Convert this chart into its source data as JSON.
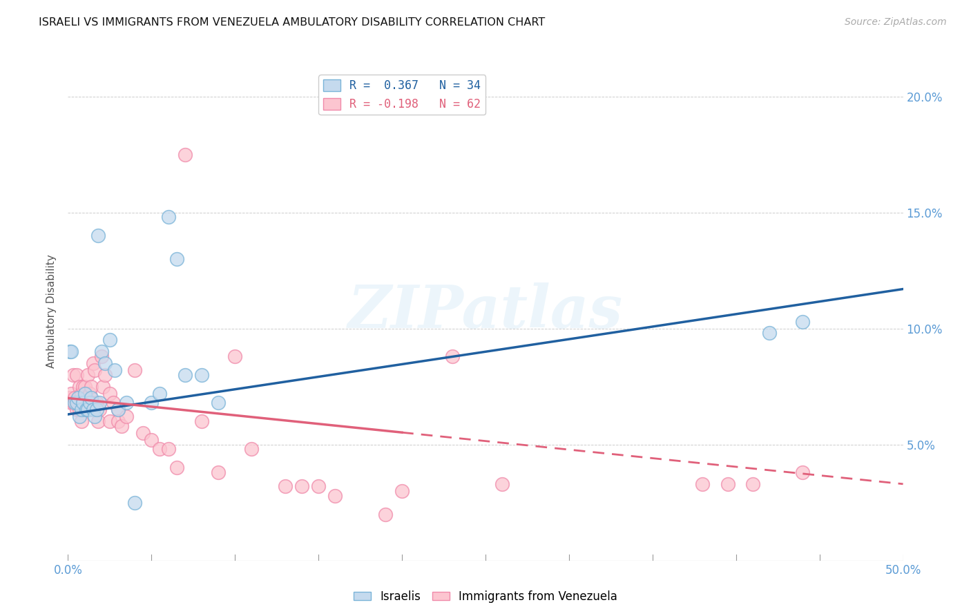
{
  "title": "ISRAELI VS IMMIGRANTS FROM VENEZUELA AMBULATORY DISABILITY CORRELATION CHART",
  "source": "Source: ZipAtlas.com",
  "ylabel": "Ambulatory Disability",
  "xlim": [
    0.0,
    0.5
  ],
  "ylim": [
    0.0,
    0.215
  ],
  "xtick_positions": [
    0.0,
    0.05,
    0.1,
    0.15,
    0.2,
    0.25,
    0.3,
    0.35,
    0.4,
    0.45,
    0.5
  ],
  "xtick_labels": [
    "0.0%",
    "",
    "",
    "",
    "",
    "",
    "",
    "",
    "",
    "",
    "50.0%"
  ],
  "ytick_positions": [
    0.0,
    0.05,
    0.1,
    0.15,
    0.2
  ],
  "ytick_labels": [
    "",
    "5.0%",
    "10.0%",
    "15.0%",
    "20.0%"
  ],
  "watermark": "ZIPatlas",
  "legend_israeli": "R =  0.367   N = 34",
  "legend_venezuela": "R = -0.198   N = 62",
  "israeli_color": "#c5daee",
  "israeli_edge": "#7ab4d8",
  "venezuela_color": "#fcc5d0",
  "venezuela_edge": "#f08aaa",
  "trendline_israeli_color": "#2060a0",
  "trendline_venezuela_color": "#e0607a",
  "israeli_x": [
    0.001,
    0.002,
    0.004,
    0.005,
    0.006,
    0.007,
    0.008,
    0.009,
    0.01,
    0.011,
    0.012,
    0.013,
    0.014,
    0.015,
    0.016,
    0.017,
    0.018,
    0.019,
    0.02,
    0.022,
    0.025,
    0.028,
    0.03,
    0.035,
    0.04,
    0.05,
    0.055,
    0.06,
    0.065,
    0.07,
    0.08,
    0.09,
    0.42,
    0.44
  ],
  "israeli_y": [
    0.09,
    0.09,
    0.068,
    0.068,
    0.07,
    0.062,
    0.065,
    0.068,
    0.072,
    0.065,
    0.065,
    0.068,
    0.07,
    0.065,
    0.062,
    0.065,
    0.14,
    0.068,
    0.09,
    0.085,
    0.095,
    0.082,
    0.065,
    0.068,
    0.025,
    0.068,
    0.072,
    0.148,
    0.13,
    0.08,
    0.08,
    0.068,
    0.098,
    0.103
  ],
  "venezuela_x": [
    0.001,
    0.002,
    0.002,
    0.003,
    0.003,
    0.004,
    0.005,
    0.005,
    0.006,
    0.007,
    0.007,
    0.008,
    0.008,
    0.009,
    0.009,
    0.01,
    0.01,
    0.011,
    0.011,
    0.012,
    0.013,
    0.013,
    0.014,
    0.014,
    0.015,
    0.016,
    0.017,
    0.018,
    0.019,
    0.02,
    0.021,
    0.022,
    0.025,
    0.025,
    0.027,
    0.03,
    0.03,
    0.032,
    0.035,
    0.04,
    0.045,
    0.05,
    0.055,
    0.06,
    0.065,
    0.07,
    0.08,
    0.09,
    0.1,
    0.11,
    0.13,
    0.14,
    0.15,
    0.16,
    0.19,
    0.2,
    0.23,
    0.26,
    0.38,
    0.395,
    0.41,
    0.44
  ],
  "venezuela_y": [
    0.07,
    0.068,
    0.072,
    0.08,
    0.068,
    0.07,
    0.065,
    0.08,
    0.068,
    0.075,
    0.065,
    0.072,
    0.06,
    0.068,
    0.075,
    0.065,
    0.075,
    0.07,
    0.065,
    0.08,
    0.072,
    0.065,
    0.075,
    0.068,
    0.085,
    0.082,
    0.068,
    0.06,
    0.065,
    0.088,
    0.075,
    0.08,
    0.06,
    0.072,
    0.068,
    0.065,
    0.06,
    0.058,
    0.062,
    0.082,
    0.055,
    0.052,
    0.048,
    0.048,
    0.04,
    0.175,
    0.06,
    0.038,
    0.088,
    0.048,
    0.032,
    0.032,
    0.032,
    0.028,
    0.02,
    0.03,
    0.088,
    0.033,
    0.033,
    0.033,
    0.033,
    0.038
  ],
  "trendline_switch_x": 0.2,
  "israeli_trend_x0": 0.0,
  "israeli_trend_y0": 0.063,
  "israeli_trend_x1": 0.5,
  "israeli_trend_y1": 0.117,
  "venezuela_trend_x0": 0.0,
  "venezuela_trend_y0": 0.07,
  "venezuela_trend_x1": 0.5,
  "venezuela_trend_y1": 0.033
}
